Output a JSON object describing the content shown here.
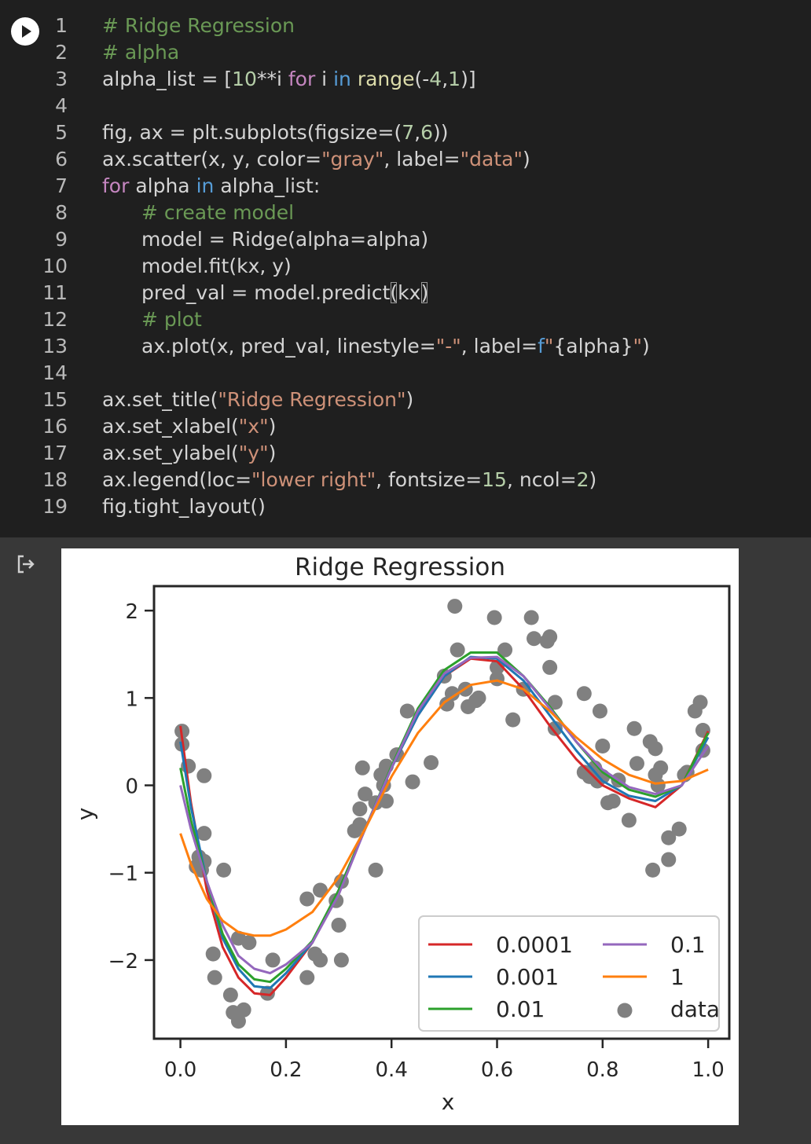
{
  "code_lines": [
    {
      "n": "1",
      "ind": 0,
      "t": [
        {
          "c": "cm",
          "s": "# Ridge Regression"
        }
      ]
    },
    {
      "n": "2",
      "ind": 0,
      "t": [
        {
          "c": "cm",
          "s": "# alpha"
        }
      ]
    },
    {
      "n": "3",
      "ind": 0,
      "t": [
        {
          "c": "tx",
          "s": "alpha_list = ["
        },
        {
          "c": "nm",
          "s": "10"
        },
        {
          "c": "tx",
          "s": "**i "
        },
        {
          "c": "kw",
          "s": "for"
        },
        {
          "c": "tx",
          "s": " i "
        },
        {
          "c": "op",
          "s": "in"
        },
        {
          "c": "tx",
          "s": " "
        },
        {
          "c": "fn",
          "s": "range"
        },
        {
          "c": "tx",
          "s": "(-"
        },
        {
          "c": "nm",
          "s": "4"
        },
        {
          "c": "tx",
          "s": ","
        },
        {
          "c": "nm",
          "s": "1"
        },
        {
          "c": "tx",
          "s": ")]"
        }
      ]
    },
    {
      "n": "4",
      "ind": 0,
      "t": []
    },
    {
      "n": "5",
      "ind": 0,
      "t": [
        {
          "c": "tx",
          "s": "fig, ax = plt.subplots(figsize=("
        },
        {
          "c": "nm",
          "s": "7"
        },
        {
          "c": "tx",
          "s": ","
        },
        {
          "c": "nm",
          "s": "6"
        },
        {
          "c": "tx",
          "s": "))"
        }
      ]
    },
    {
      "n": "6",
      "ind": 0,
      "t": [
        {
          "c": "tx",
          "s": "ax.scatter(x, y, color="
        },
        {
          "c": "st",
          "s": "\"gray\""
        },
        {
          "c": "tx",
          "s": ", label="
        },
        {
          "c": "st",
          "s": "\"data\""
        },
        {
          "c": "tx",
          "s": ")"
        }
      ]
    },
    {
      "n": "7",
      "ind": 0,
      "t": [
        {
          "c": "kw",
          "s": "for"
        },
        {
          "c": "tx",
          "s": " alpha "
        },
        {
          "c": "op",
          "s": "in"
        },
        {
          "c": "tx",
          "s": " alpha_list:"
        }
      ]
    },
    {
      "n": "8",
      "ind": 1,
      "t": [
        {
          "c": "cm",
          "s": "# create model"
        }
      ]
    },
    {
      "n": "9",
      "ind": 1,
      "t": [
        {
          "c": "tx",
          "s": "model = Ridge(alpha=alpha)"
        }
      ]
    },
    {
      "n": "10",
      "ind": 1,
      "t": [
        {
          "c": "tx",
          "s": "model.fit(kx, y)"
        }
      ]
    },
    {
      "n": "11",
      "ind": 1,
      "t": [
        {
          "c": "tx",
          "s": "pred_val = model.predict"
        },
        {
          "c": "br",
          "s": "("
        },
        {
          "c": "tx",
          "s": "kx"
        },
        {
          "c": "br",
          "s": ")"
        }
      ]
    },
    {
      "n": "12",
      "ind": 1,
      "t": [
        {
          "c": "cm",
          "s": "# plot"
        }
      ]
    },
    {
      "n": "13",
      "ind": 1,
      "t": [
        {
          "c": "tx",
          "s": "ax.plot(x, pred_val, linestyle="
        },
        {
          "c": "st",
          "s": "\"-\""
        },
        {
          "c": "tx",
          "s": ", label="
        },
        {
          "c": "op",
          "s": "f"
        },
        {
          "c": "st",
          "s": "\""
        },
        {
          "c": "tx",
          "s": "{alpha}"
        },
        {
          "c": "st",
          "s": "\""
        },
        {
          "c": "tx",
          "s": ")"
        }
      ]
    },
    {
      "n": "14",
      "ind": 0,
      "t": []
    },
    {
      "n": "15",
      "ind": 0,
      "t": [
        {
          "c": "tx",
          "s": "ax.set_title("
        },
        {
          "c": "st",
          "s": "\"Ridge Regression\""
        },
        {
          "c": "tx",
          "s": ")"
        }
      ]
    },
    {
      "n": "16",
      "ind": 0,
      "t": [
        {
          "c": "tx",
          "s": "ax.set_xlabel("
        },
        {
          "c": "st",
          "s": "\"x\""
        },
        {
          "c": "tx",
          "s": ")"
        }
      ]
    },
    {
      "n": "17",
      "ind": 0,
      "t": [
        {
          "c": "tx",
          "s": "ax.set_ylabel("
        },
        {
          "c": "st",
          "s": "\"y\""
        },
        {
          "c": "tx",
          "s": ")"
        }
      ]
    },
    {
      "n": "18",
      "ind": 0,
      "t": [
        {
          "c": "tx",
          "s": "ax.legend(loc="
        },
        {
          "c": "st",
          "s": "\"lower right\""
        },
        {
          "c": "tx",
          "s": ", fontsize="
        },
        {
          "c": "nm",
          "s": "15"
        },
        {
          "c": "tx",
          "s": ", ncol="
        },
        {
          "c": "nm",
          "s": "2"
        },
        {
          "c": "tx",
          "s": ")"
        }
      ]
    },
    {
      "n": "19",
      "ind": 0,
      "t": [
        {
          "c": "tx",
          "s": "fig.tight_layout()"
        }
      ]
    }
  ],
  "syntax_colors": {
    "tx": "#d4d4d4",
    "cm": "#6a9955",
    "kw": "#c586c0",
    "op": "#569cd6",
    "fn": "#dcdcaa",
    "nm": "#b5cea8",
    "st": "#ce9178",
    "br": "#d4d4d4"
  },
  "icons": {
    "run": "play-icon",
    "output": "output-arrow-icon"
  },
  "chart_data": {
    "type": "scatter",
    "title": "Ridge Regression",
    "xlabel": "x",
    "ylabel": "y",
    "xlim": [
      -0.05,
      1.04
    ],
    "ylim": [
      -2.9,
      2.28
    ],
    "xticks": [
      0.0,
      0.2,
      0.4,
      0.6,
      0.8,
      1.0
    ],
    "xtick_labels": [
      "0.0",
      "0.2",
      "0.4",
      "0.6",
      "0.8",
      "1.0"
    ],
    "yticks": [
      -2,
      -1,
      0,
      1,
      2
    ],
    "ytick_labels": [
      "−2",
      "−1",
      "0",
      "1",
      "2"
    ],
    "legend": {
      "loc": "lower right",
      "ncol": 2
    },
    "data_series": {
      "name": "data",
      "color": "#808080",
      "points": [
        [
          0.003,
          0.62
        ],
        [
          0.003,
          0.47
        ],
        [
          0.015,
          0.22
        ],
        [
          0.045,
          0.11
        ],
        [
          0.045,
          -0.55
        ],
        [
          0.035,
          -0.82
        ],
        [
          0.045,
          -0.87
        ],
        [
          0.03,
          -0.93
        ],
        [
          0.04,
          -0.97
        ],
        [
          0.082,
          -0.97
        ],
        [
          0.062,
          -1.93
        ],
        [
          0.065,
          -2.2
        ],
        [
          0.095,
          -2.4
        ],
        [
          0.1,
          -2.6
        ],
        [
          0.11,
          -2.7
        ],
        [
          0.12,
          -2.57
        ],
        [
          0.13,
          -1.8
        ],
        [
          0.11,
          -1.75
        ],
        [
          0.165,
          -2.38
        ],
        [
          0.175,
          -2.0
        ],
        [
          0.24,
          -2.2
        ],
        [
          0.24,
          -1.3
        ],
        [
          0.265,
          -1.2
        ],
        [
          0.255,
          -1.93
        ],
        [
          0.265,
          -2.0
        ],
        [
          0.295,
          -1.32
        ],
        [
          0.3,
          -1.6
        ],
        [
          0.305,
          -2.0
        ],
        [
          0.305,
          -1.1
        ],
        [
          0.33,
          -0.52
        ],
        [
          0.34,
          -0.27
        ],
        [
          0.34,
          -0.45
        ],
        [
          0.35,
          -0.1
        ],
        [
          0.345,
          0.2
        ],
        [
          0.37,
          -0.2
        ],
        [
          0.37,
          -0.97
        ],
        [
          0.38,
          0.12
        ],
        [
          0.385,
          0.0
        ],
        [
          0.39,
          0.22
        ],
        [
          0.39,
          -0.18
        ],
        [
          0.41,
          0.35
        ],
        [
          0.43,
          0.85
        ],
        [
          0.44,
          0.04
        ],
        [
          0.475,
          0.26
        ],
        [
          0.5,
          1.25
        ],
        [
          0.505,
          0.93
        ],
        [
          0.515,
          1.05
        ],
        [
          0.52,
          2.05
        ],
        [
          0.525,
          1.55
        ],
        [
          0.54,
          1.1
        ],
        [
          0.545,
          0.9
        ],
        [
          0.56,
          0.97
        ],
        [
          0.565,
          1.0
        ],
        [
          0.6,
          1.22
        ],
        [
          0.6,
          1.35
        ],
        [
          0.595,
          1.92
        ],
        [
          0.615,
          1.55
        ],
        [
          0.63,
          0.75
        ],
        [
          0.65,
          1.1
        ],
        [
          0.665,
          1.92
        ],
        [
          0.67,
          1.68
        ],
        [
          0.695,
          1.65
        ],
        [
          0.7,
          1.7
        ],
        [
          0.7,
          1.35
        ],
        [
          0.71,
          0.95
        ],
        [
          0.71,
          0.65
        ],
        [
          0.765,
          1.05
        ],
        [
          0.765,
          0.15
        ],
        [
          0.775,
          0.1
        ],
        [
          0.785,
          0.2
        ],
        [
          0.79,
          0.05
        ],
        [
          0.795,
          0.85
        ],
        [
          0.8,
          0.45
        ],
        [
          0.8,
          0.1
        ],
        [
          0.81,
          -0.2
        ],
        [
          0.82,
          -0.18
        ],
        [
          0.83,
          0.06
        ],
        [
          0.85,
          -0.4
        ],
        [
          0.86,
          0.65
        ],
        [
          0.865,
          0.25
        ],
        [
          0.89,
          0.5
        ],
        [
          0.895,
          -0.97
        ],
        [
          0.9,
          0.42
        ],
        [
          0.9,
          0.12
        ],
        [
          0.905,
          0.0
        ],
        [
          0.91,
          0.2
        ],
        [
          0.925,
          -0.85
        ],
        [
          0.925,
          -0.6
        ],
        [
          0.945,
          -0.5
        ],
        [
          0.955,
          0.12
        ],
        [
          0.96,
          0.15
        ],
        [
          0.975,
          0.85
        ],
        [
          0.985,
          0.95
        ],
        [
          0.99,
          0.63
        ],
        [
          0.99,
          0.4
        ]
      ]
    },
    "series": [
      {
        "name": "0.0001",
        "color": "#d62728",
        "x": [
          0,
          0.02,
          0.05,
          0.08,
          0.11,
          0.14,
          0.17,
          0.2,
          0.25,
          0.3,
          0.35,
          0.4,
          0.45,
          0.5,
          0.55,
          0.6,
          0.65,
          0.7,
          0.75,
          0.8,
          0.85,
          0.9,
          0.95,
          1.0
        ],
        "y": [
          0.68,
          -0.2,
          -1.2,
          -1.85,
          -2.2,
          -2.38,
          -2.4,
          -2.2,
          -1.8,
          -1.2,
          -0.5,
          0.2,
          0.8,
          1.25,
          1.45,
          1.42,
          1.1,
          0.68,
          0.3,
          0.0,
          -0.15,
          -0.25,
          0.0,
          0.62
        ]
      },
      {
        "name": "0.001",
        "color": "#1f77b4",
        "x": [
          0,
          0.02,
          0.05,
          0.08,
          0.11,
          0.14,
          0.17,
          0.2,
          0.25,
          0.3,
          0.35,
          0.4,
          0.45,
          0.5,
          0.55,
          0.6,
          0.65,
          0.7,
          0.75,
          0.8,
          0.85,
          0.9,
          0.95,
          1.0
        ],
        "y": [
          0.5,
          -0.25,
          -1.1,
          -1.75,
          -2.1,
          -2.3,
          -2.32,
          -2.15,
          -1.8,
          -1.2,
          -0.5,
          0.2,
          0.8,
          1.25,
          1.47,
          1.45,
          1.2,
          0.8,
          0.4,
          0.05,
          -0.12,
          -0.18,
          0.0,
          0.55
        ]
      },
      {
        "name": "0.01",
        "color": "#2ca02c",
        "x": [
          0,
          0.02,
          0.05,
          0.08,
          0.11,
          0.14,
          0.17,
          0.2,
          0.25,
          0.3,
          0.35,
          0.4,
          0.45,
          0.5,
          0.55,
          0.6,
          0.65,
          0.7,
          0.75,
          0.8,
          0.85,
          0.9,
          0.95,
          1.0
        ],
        "y": [
          0.2,
          -0.4,
          -1.1,
          -1.7,
          -2.05,
          -2.22,
          -2.25,
          -2.1,
          -1.78,
          -1.2,
          -0.5,
          0.22,
          0.88,
          1.32,
          1.52,
          1.52,
          1.25,
          0.9,
          0.5,
          0.15,
          -0.05,
          -0.13,
          0.0,
          0.6
        ]
      },
      {
        "name": "0.1",
        "color": "#9467bd",
        "x": [
          0,
          0.02,
          0.05,
          0.08,
          0.11,
          0.14,
          0.17,
          0.2,
          0.25,
          0.3,
          0.35,
          0.4,
          0.45,
          0.5,
          0.55,
          0.6,
          0.65,
          0.7,
          0.75,
          0.8,
          0.85,
          0.9,
          0.95,
          1.0
        ],
        "y": [
          0.0,
          -0.5,
          -1.1,
          -1.6,
          -1.95,
          -2.1,
          -2.15,
          -2.05,
          -1.8,
          -1.25,
          -0.5,
          0.2,
          0.85,
          1.28,
          1.46,
          1.47,
          1.25,
          0.88,
          0.5,
          0.18,
          -0.02,
          -0.1,
          0.0,
          0.45
        ]
      },
      {
        "name": "1",
        "color": "#ff7f0e",
        "x": [
          0,
          0.02,
          0.05,
          0.08,
          0.11,
          0.14,
          0.17,
          0.2,
          0.25,
          0.3,
          0.35,
          0.4,
          0.45,
          0.5,
          0.55,
          0.6,
          0.65,
          0.7,
          0.75,
          0.8,
          0.85,
          0.9,
          0.95,
          1.0
        ],
        "y": [
          -0.55,
          -0.9,
          -1.3,
          -1.55,
          -1.68,
          -1.72,
          -1.72,
          -1.65,
          -1.45,
          -1.05,
          -0.5,
          0.1,
          0.6,
          0.95,
          1.15,
          1.2,
          1.1,
          0.85,
          0.55,
          0.3,
          0.12,
          0.02,
          0.05,
          0.18
        ]
      }
    ]
  }
}
